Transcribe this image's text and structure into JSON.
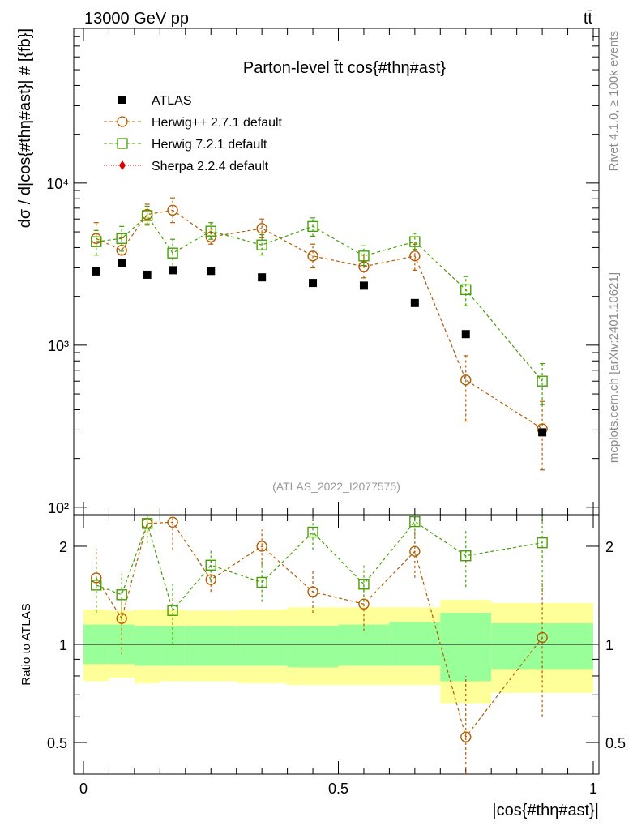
{
  "header": {
    "left": "13000 GeV pp",
    "right": "tt̄"
  },
  "side_labels": {
    "top": "Rivet 4.1.0, ≥ 100k events",
    "bottom": "mcplots.cern.ch [arXiv:2401.10621]"
  },
  "chart_data": [
    {
      "type": "scatter",
      "title": "Parton-level t̄t cos{#thη#ast}",
      "watermark": "(ATLAS_2022_I2077575)",
      "xlabel": "|cos{#thη#ast}|",
      "ylabel": "dσ / d|cos{#thη#ast}| # [{fb}]",
      "yscale": "log",
      "xlim": [
        0,
        1
      ],
      "ylim": [
        90,
        90000
      ],
      "ytick_labels": [
        "10²",
        "10³",
        "10⁴"
      ],
      "ytick_values": [
        100,
        1000,
        10000
      ],
      "x": [
        0.025,
        0.075,
        0.125,
        0.175,
        0.25,
        0.35,
        0.45,
        0.55,
        0.65,
        0.75,
        0.9
      ],
      "series": [
        {
          "name": "ATLAS",
          "color": "#000000",
          "marker": "square-filled",
          "values": [
            2850,
            3200,
            2720,
            2900,
            2870,
            2620,
            2420,
            2330,
            1820,
            1170,
            290
          ]
        },
        {
          "name": "Herwig++ 2.7.1 default",
          "color": "#b35c00",
          "marker": "circle-open",
          "values": [
            4550,
            3850,
            6400,
            6800,
            4650,
            5250,
            3550,
            3050,
            3550,
            610,
            305
          ],
          "err_lo": [
            3600,
            3100,
            5600,
            5700,
            4200,
            4600,
            3000,
            2600,
            2900,
            340,
            170
          ],
          "err_hi": [
            5700,
            4600,
            7400,
            8100,
            5200,
            6000,
            4200,
            3600,
            4200,
            860,
            450
          ]
        },
        {
          "name": "Herwig 7.2.1 default",
          "color": "#44a000",
          "marker": "square-open",
          "values": [
            4350,
            4550,
            6300,
            3700,
            5050,
            4150,
            5400,
            3550,
            4350,
            2200,
            600
          ],
          "err_lo": [
            3600,
            3800,
            5500,
            2900,
            4500,
            3600,
            4700,
            3100,
            3900,
            1750,
            430
          ],
          "err_hi": [
            5100,
            5400,
            7200,
            4500,
            5700,
            4800,
            6100,
            4100,
            4900,
            2650,
            770
          ]
        },
        {
          "name": "Sherpa 2.2.4 default",
          "color": "#e00000",
          "marker": "diamond-filled",
          "values": []
        }
      ]
    },
    {
      "type": "ratio",
      "ylabel": "Ratio to ATLAS",
      "yscale": "log",
      "ylim": [
        0.4,
        2.5
      ],
      "ytick_labels": [
        "0.5",
        "1",
        "2"
      ],
      "ytick_values": [
        0.5,
        1,
        2
      ],
      "xtick_labels": [
        "0",
        "0.5",
        "1"
      ],
      "xtick_values": [
        0,
        0.5,
        1
      ],
      "band_edges": [
        0,
        0.05,
        0.1,
        0.15,
        0.2,
        0.3,
        0.4,
        0.5,
        0.6,
        0.7,
        0.8,
        1.0
      ],
      "band_1sigma_lo": [
        0.87,
        0.87,
        0.86,
        0.86,
        0.86,
        0.86,
        0.85,
        0.86,
        0.86,
        0.77,
        0.84
      ],
      "band_1sigma_hi": [
        1.15,
        1.15,
        1.14,
        1.14,
        1.14,
        1.14,
        1.14,
        1.15,
        1.17,
        1.25,
        1.16
      ],
      "band_2sigma_lo": [
        0.77,
        0.79,
        0.76,
        0.77,
        0.77,
        0.76,
        0.75,
        0.75,
        0.75,
        0.66,
        0.71
      ],
      "band_2sigma_hi": [
        1.28,
        1.27,
        1.28,
        1.28,
        1.27,
        1.28,
        1.3,
        1.3,
        1.3,
        1.37,
        1.34
      ],
      "series": [
        {
          "name": "Herwig++ 2.7.1 default",
          "color": "#b35c00",
          "values": [
            1.6,
            1.2,
            2.35,
            2.37,
            1.58,
            2.0,
            1.45,
            1.33,
            1.93,
            0.52,
            1.05
          ],
          "err_lo": [
            1.25,
            0.93,
            2.05,
            1.95,
            1.45,
            1.75,
            1.25,
            1.1,
            1.6,
            0.3,
            0.6
          ],
          "err_hi": [
            1.97,
            1.4,
            2.65,
            2.7,
            1.8,
            2.25,
            1.7,
            1.55,
            2.25,
            0.8,
            1.55
          ]
        },
        {
          "name": "Herwig 7.2.1 default",
          "color": "#44a000",
          "values": [
            1.52,
            1.42,
            2.35,
            1.27,
            1.75,
            1.55,
            2.21,
            1.53,
            2.38,
            1.87,
            2.05
          ],
          "err_lo": [
            1.25,
            1.2,
            2.05,
            1.0,
            1.55,
            1.35,
            1.95,
            1.35,
            2.15,
            1.5,
            1.45
          ],
          "err_hi": [
            1.8,
            1.65,
            2.65,
            1.55,
            1.95,
            1.8,
            2.45,
            1.75,
            2.6,
            2.25,
            2.6
          ]
        }
      ]
    }
  ]
}
